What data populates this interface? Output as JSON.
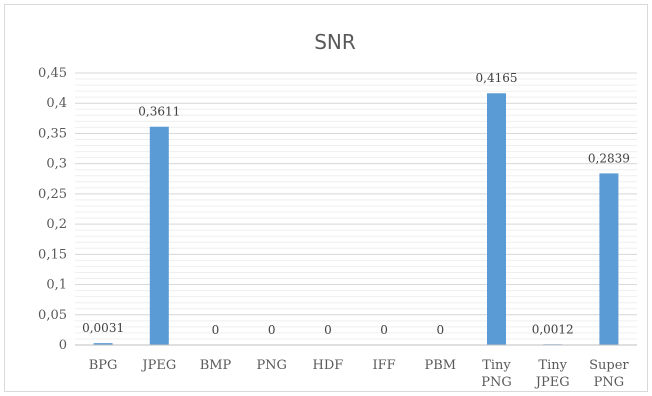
{
  "chart_data": {
    "type": "bar",
    "title": "SNR",
    "xlabel": "",
    "ylabel": "",
    "categories": [
      [
        "BPG"
      ],
      [
        "JPEG"
      ],
      [
        "BMP"
      ],
      [
        "PNG"
      ],
      [
        "HDF"
      ],
      [
        "IFF"
      ],
      [
        "PBM"
      ],
      [
        "Tiny",
        "PNG"
      ],
      [
        "Tiny",
        "JPEG"
      ],
      [
        "Super",
        "PNG"
      ]
    ],
    "values": [
      0.0031,
      0.3611,
      0,
      0,
      0,
      0,
      0,
      0.4165,
      0.0012,
      0.2839
    ],
    "data_labels": [
      "0,0031",
      "0,3611",
      "0",
      "0",
      "0",
      "0",
      "0",
      "0,4165",
      "0,0012",
      "0,2839"
    ],
    "ylim": [
      0,
      0.45
    ],
    "yticks": [
      "0",
      "0,05",
      "0,1",
      "0,15",
      "0,2",
      "0,25",
      "0,3",
      "0,35",
      "0,4",
      "0,45"
    ],
    "grid": true,
    "legend": "none",
    "bar_color": "#5b9bd5",
    "grid_color": "#d9d9d9"
  }
}
